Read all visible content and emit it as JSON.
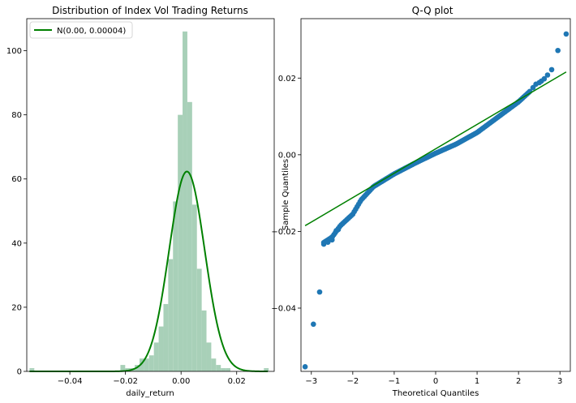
{
  "chart_data": [
    {
      "type": "bar",
      "title": "Distribution of Index Vol Trading Returns",
      "xlabel": "daily_return",
      "ylabel": "",
      "xlim": [
        -0.0555,
        0.0335
      ],
      "ylim": [
        0,
        110
      ],
      "xticks": [
        -0.04,
        -0.02,
        0.0,
        0.02
      ],
      "xtick_labels": [
        "−0.04",
        "−0.02",
        "0.00",
        "0.02"
      ],
      "yticks": [
        0,
        20,
        40,
        60,
        80,
        100
      ],
      "ytick_labels": [
        "0",
        "20",
        "40",
        "60",
        "80",
        "100"
      ],
      "histogram": {
        "bin_start": -0.0545,
        "bin_width": 0.00172,
        "counts": [
          1,
          0,
          0,
          0,
          0,
          0,
          0,
          0,
          0,
          0,
          0,
          0,
          0,
          0,
          0,
          0,
          0,
          0,
          0,
          2,
          1,
          1,
          2,
          4,
          4,
          5,
          9,
          14,
          21,
          35,
          53,
          80,
          106,
          84,
          52,
          32,
          19,
          9,
          4,
          2,
          1,
          1,
          0,
          0,
          0,
          0,
          0,
          0,
          0,
          1
        ],
        "color": "#a8d0b8"
      },
      "series": [
        {
          "name": "N(0.00, 0.00004)",
          "type": "line",
          "mean": 0.0021,
          "std": 0.0064,
          "count_scale": 1,
          "color": "#008000"
        }
      ],
      "legend": {
        "placement": "top-left",
        "entries": [
          "N(0.00, 0.00004)"
        ]
      },
      "grid": false
    },
    {
      "type": "scatter",
      "title": "Q-Q plot",
      "xlabel": "Theoretical Quantiles",
      "ylabel": "Sample Quantiles",
      "xlim": [
        -3.25,
        3.25
      ],
      "ylim": [
        -0.0565,
        0.0355
      ],
      "xticks": [
        -3,
        -2,
        -1,
        0,
        1,
        2,
        3
      ],
      "xtick_labels": [
        "−3",
        "−2",
        "−1",
        "0",
        "1",
        "2",
        "3"
      ],
      "yticks": [
        -0.04,
        -0.02,
        0.0,
        0.02
      ],
      "ytick_labels": [
        "−0.04",
        "−0.02",
        "0.00",
        "0.02"
      ],
      "qq_curve_knots": {
        "x": [
          -2.7,
          -2.5,
          -2.3,
          -2.0,
          -1.8,
          -1.5,
          -1.0,
          -0.5,
          0.0,
          0.5,
          1.0,
          1.5,
          2.0,
          2.2,
          2.3
        ],
        "y": [
          -0.0229,
          -0.0215,
          -0.0185,
          -0.0155,
          -0.0118,
          -0.0083,
          -0.005,
          -0.0022,
          0.0004,
          0.0028,
          0.0058,
          0.0098,
          0.0138,
          0.0158,
          0.0168
        ]
      },
      "series": [
        {
          "name": "",
          "points": [
            [
              -3.15,
              -0.0553
            ],
            [
              -2.95,
              -0.0442
            ],
            [
              -2.8,
              -0.0358
            ],
            [
              -2.7,
              -0.0233
            ],
            [
              -2.6,
              -0.0228
            ],
            [
              -2.5,
              -0.0222
            ],
            [
              -2.4,
              -0.0198
            ],
            [
              -2.35,
              -0.0195
            ],
            [
              2.35,
              0.0175
            ],
            [
              2.42,
              0.0184
            ],
            [
              2.5,
              0.0188
            ],
            [
              2.55,
              0.0192
            ],
            [
              2.62,
              0.0198
            ],
            [
              2.7,
              0.0208
            ],
            [
              2.8,
              0.0222
            ],
            [
              2.95,
              0.0272
            ],
            [
              3.15,
              0.0315
            ]
          ],
          "color": "#1f77b4"
        },
        {
          "name": "",
          "type": "line",
          "points": [
            [
              -3.15,
              -0.0185
            ],
            [
              3.15,
              0.0216
            ]
          ],
          "color": "#008000"
        }
      ],
      "grid": false
    }
  ]
}
